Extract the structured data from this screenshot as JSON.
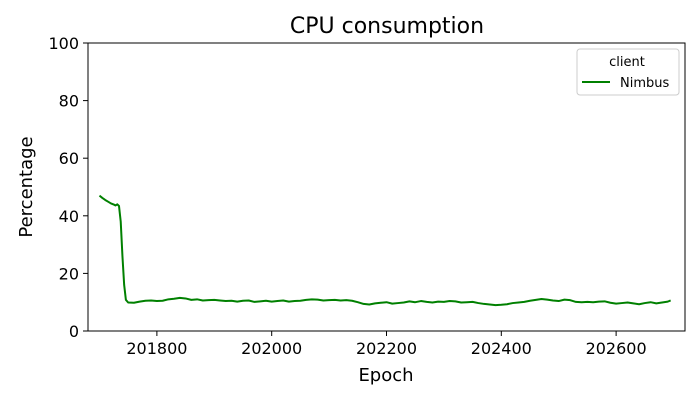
{
  "chart_data": {
    "type": "line",
    "title": "CPU consumption",
    "xlabel": "Epoch",
    "ylabel": "Percentage",
    "xlim": [
      201680,
      202720
    ],
    "ylim": [
      0,
      100
    ],
    "x_ticks": [
      201800,
      202000,
      202200,
      202400,
      202600
    ],
    "y_ticks": [
      0,
      20,
      40,
      60,
      80,
      100
    ],
    "grid": false,
    "legend": {
      "title": "client",
      "placement": "top-right"
    },
    "series": [
      {
        "name": "Nimbus",
        "color": "#008000",
        "points": [
          [
            201700,
            47.0
          ],
          [
            201705,
            46.2
          ],
          [
            201710,
            45.5
          ],
          [
            201715,
            44.9
          ],
          [
            201720,
            44.3
          ],
          [
            201725,
            43.9
          ],
          [
            201728,
            43.6
          ],
          [
            201731,
            44.0
          ],
          [
            201734,
            43.4
          ],
          [
            201737,
            38.0
          ],
          [
            201740,
            26.0
          ],
          [
            201743,
            16.0
          ],
          [
            201746,
            10.8
          ],
          [
            201750,
            9.9
          ],
          [
            201760,
            9.8
          ],
          [
            201770,
            10.2
          ],
          [
            201780,
            10.5
          ],
          [
            201790,
            10.6
          ],
          [
            201800,
            10.4
          ],
          [
            201810,
            10.5
          ],
          [
            201820,
            11.0
          ],
          [
            201830,
            11.2
          ],
          [
            201840,
            11.5
          ],
          [
            201850,
            11.3
          ],
          [
            201860,
            10.8
          ],
          [
            201870,
            11.0
          ],
          [
            201880,
            10.6
          ],
          [
            201890,
            10.7
          ],
          [
            201900,
            10.8
          ],
          [
            201910,
            10.6
          ],
          [
            201920,
            10.4
          ],
          [
            201930,
            10.5
          ],
          [
            201940,
            10.2
          ],
          [
            201950,
            10.5
          ],
          [
            201960,
            10.6
          ],
          [
            201970,
            10.1
          ],
          [
            201980,
            10.3
          ],
          [
            201990,
            10.5
          ],
          [
            202000,
            10.2
          ],
          [
            202010,
            10.4
          ],
          [
            202020,
            10.6
          ],
          [
            202030,
            10.2
          ],
          [
            202040,
            10.4
          ],
          [
            202050,
            10.5
          ],
          [
            202060,
            10.8
          ],
          [
            202070,
            11.0
          ],
          [
            202080,
            10.9
          ],
          [
            202090,
            10.6
          ],
          [
            202100,
            10.7
          ],
          [
            202110,
            10.8
          ],
          [
            202120,
            10.6
          ],
          [
            202130,
            10.7
          ],
          [
            202140,
            10.5
          ],
          [
            202150,
            10.0
          ],
          [
            202160,
            9.4
          ],
          [
            202170,
            9.2
          ],
          [
            202180,
            9.6
          ],
          [
            202190,
            9.8
          ],
          [
            202200,
            10.0
          ],
          [
            202210,
            9.5
          ],
          [
            202220,
            9.7
          ],
          [
            202230,
            9.9
          ],
          [
            202240,
            10.3
          ],
          [
            202250,
            10.0
          ],
          [
            202260,
            10.4
          ],
          [
            202270,
            10.1
          ],
          [
            202280,
            9.9
          ],
          [
            202290,
            10.2
          ],
          [
            202300,
            10.1
          ],
          [
            202310,
            10.4
          ],
          [
            202320,
            10.3
          ],
          [
            202330,
            9.9
          ],
          [
            202340,
            10.0
          ],
          [
            202350,
            10.1
          ],
          [
            202360,
            9.7
          ],
          [
            202370,
            9.4
          ],
          [
            202380,
            9.2
          ],
          [
            202390,
            9.0
          ],
          [
            202400,
            9.1
          ],
          [
            202410,
            9.3
          ],
          [
            202420,
            9.7
          ],
          [
            202430,
            9.9
          ],
          [
            202440,
            10.1
          ],
          [
            202450,
            10.5
          ],
          [
            202460,
            10.8
          ],
          [
            202470,
            11.1
          ],
          [
            202480,
            10.9
          ],
          [
            202490,
            10.6
          ],
          [
            202500,
            10.4
          ],
          [
            202510,
            10.9
          ],
          [
            202520,
            10.7
          ],
          [
            202530,
            10.1
          ],
          [
            202540,
            10.0
          ],
          [
            202550,
            10.1
          ],
          [
            202560,
            10.0
          ],
          [
            202570,
            10.2
          ],
          [
            202580,
            10.3
          ],
          [
            202590,
            9.8
          ],
          [
            202600,
            9.5
          ],
          [
            202610,
            9.7
          ],
          [
            202620,
            9.9
          ],
          [
            202630,
            9.6
          ],
          [
            202640,
            9.3
          ],
          [
            202650,
            9.7
          ],
          [
            202660,
            10.0
          ],
          [
            202670,
            9.6
          ],
          [
            202680,
            9.9
          ],
          [
            202690,
            10.2
          ],
          [
            202695,
            10.6
          ]
        ]
      }
    ]
  }
}
